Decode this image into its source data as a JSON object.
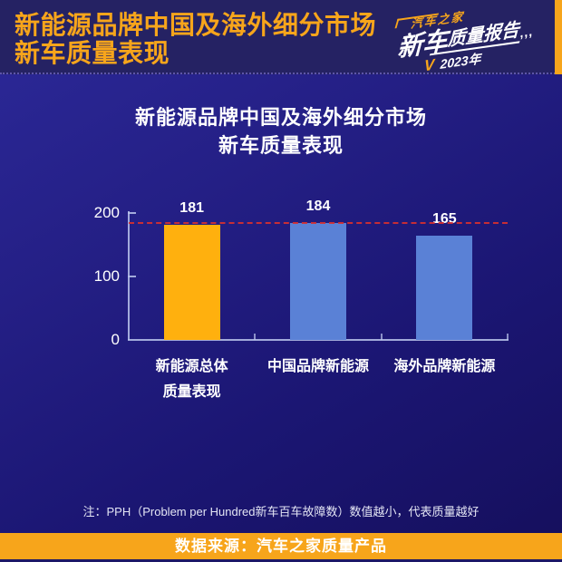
{
  "header": {
    "title_line1": "新能源品牌中国及海外细分市场",
    "title_line2": "新车质量表现",
    "logo": {
      "brand": "汽车之家",
      "title_big": "新车",
      "title_small": "质量报告",
      "marks": ",,,",
      "check": "V",
      "year": "2023年"
    }
  },
  "chart_data": {
    "type": "bar",
    "title_line1": "新能源品牌中国及海外细分市场",
    "title_line2": "新车质量表现",
    "categories": [
      "新能源总体质量表现",
      "中国品牌新能源",
      "海外品牌新能源"
    ],
    "category_label_lines": [
      [
        "新能源总体",
        "质量表现"
      ],
      [
        "中国品牌新能源"
      ],
      [
        "海外品牌新能源"
      ]
    ],
    "values": [
      181,
      184,
      165
    ],
    "value_labels": [
      "181",
      "184",
      "165"
    ],
    "bar_colors": [
      "#FFB00E",
      "#5A81D6",
      "#5A81D6"
    ],
    "ylim": [
      0,
      200
    ],
    "ytick_labels": [
      "0",
      "100",
      "200"
    ],
    "ytick_values": [
      0,
      100,
      200
    ],
    "grid": false,
    "legend_position": "none",
    "reference_line": {
      "value": 184,
      "color": "#D9302E",
      "style": "dashed"
    }
  },
  "note": "注：PPH（Problem per Hundred新车百车故障数）数值越小，代表质量越好",
  "footer": {
    "source": "数据来源：汽车之家质量产品"
  },
  "colors": {
    "accent_orange": "#F7A51B",
    "bar_orange": "#FFB00E",
    "bar_blue": "#5A81D6",
    "reference_red": "#D9302E",
    "header_bg": "#252263",
    "body_bg_top": "#2C2999",
    "body_bg_bottom": "#150F5C"
  }
}
